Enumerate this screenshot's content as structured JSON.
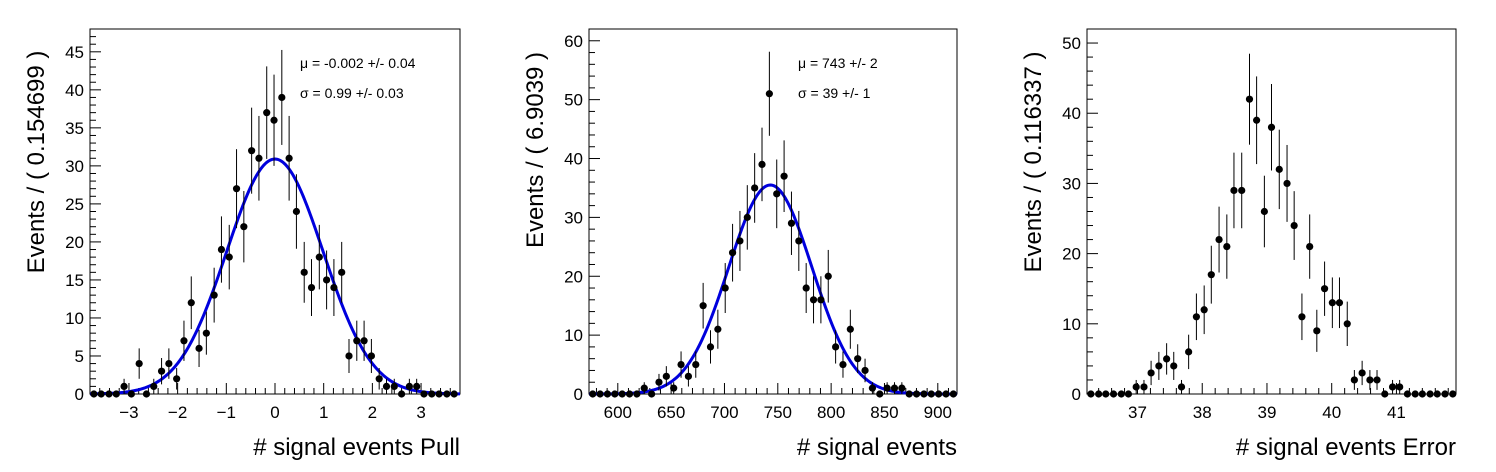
{
  "chart_data": [
    {
      "type": "scatter",
      "xlabel": "# signal events Pull",
      "ylabel": "Events / ( 0.154699 )",
      "xlim": [
        -3.8,
        3.8
      ],
      "ylim": [
        0,
        48
      ],
      "xticks": [
        -3,
        -2,
        -1,
        0,
        1,
        2,
        3
      ],
      "xtick_labels": [
        "−3",
        "−2",
        "−1",
        "0",
        "1",
        "2",
        "3"
      ],
      "yticks": [
        0,
        5,
        10,
        15,
        20,
        25,
        30,
        35,
        40,
        45
      ],
      "annotations": [
        "μ = -0.002 +/- 0.04",
        "σ =  0.99 +/- 0.03"
      ],
      "fit": {
        "type": "gaussian",
        "mean": -0.002,
        "sigma": 0.99,
        "amplitude": 30.9,
        "color": "#0000dd"
      },
      "points": {
        "x": [
          -3.72,
          -3.57,
          -3.41,
          -3.26,
          -3.1,
          -2.95,
          -2.79,
          -2.64,
          -2.49,
          -2.33,
          -2.18,
          -2.02,
          -1.87,
          -1.72,
          -1.56,
          -1.41,
          -1.25,
          -1.1,
          -0.94,
          -0.79,
          -0.64,
          -0.48,
          -0.33,
          -0.17,
          -0.02,
          0.14,
          0.29,
          0.44,
          0.6,
          0.75,
          0.91,
          1.06,
          1.21,
          1.37,
          1.52,
          1.68,
          1.83,
          1.98,
          2.14,
          2.29,
          2.45,
          2.6,
          2.76,
          2.91,
          3.06,
          3.22,
          3.37,
          3.53,
          3.68
        ],
        "y": [
          0,
          0,
          0,
          0,
          1,
          0,
          4,
          0,
          1,
          3,
          4,
          2,
          7,
          12,
          6,
          8,
          13,
          19,
          18,
          27,
          22,
          32,
          31,
          37,
          36,
          39,
          31,
          24,
          16,
          14,
          18,
          15,
          14,
          16,
          5,
          7,
          7,
          5,
          2,
          1,
          1,
          0,
          1,
          1,
          0,
          0,
          0,
          0,
          0
        ]
      }
    },
    {
      "type": "scatter",
      "xlabel": "# signal events",
      "ylabel": "Events / ( 6.9039 )",
      "xlim": [
        573,
        918
      ],
      "ylim": [
        0,
        62
      ],
      "xticks": [
        600,
        650,
        700,
        750,
        800,
        850,
        900
      ],
      "xtick_labels": [
        "600",
        "650",
        "700",
        "750",
        "800",
        "850",
        "900"
      ],
      "yticks": [
        0,
        10,
        20,
        30,
        40,
        50,
        60
      ],
      "annotations": [
        "μ =  743 +/- 2",
        "σ =  39 +/- 1"
      ],
      "fit": {
        "type": "gaussian",
        "mean": 743,
        "sigma": 39,
        "amplitude": 35.5,
        "color": "#0000dd"
      },
      "points": {
        "x": [
          576.5,
          583.4,
          590.3,
          597.2,
          604.1,
          611,
          617.9,
          624.8,
          631.7,
          638.6,
          645.5,
          652.4,
          659.3,
          666.2,
          673.1,
          680,
          686.9,
          693.8,
          700.7,
          707.6,
          714.5,
          721.4,
          728.3,
          735.2,
          742.1,
          749,
          755.9,
          762.8,
          769.7,
          776.6,
          783.5,
          790.4,
          797.3,
          804.2,
          811.1,
          818,
          824.9,
          831.8,
          838.7,
          845.6,
          852.5,
          859.4,
          866.3,
          873.2,
          880.1,
          887,
          893.9,
          900.8,
          907.7,
          914.6
        ],
        "y": [
          0,
          0,
          0,
          0,
          0,
          0,
          0,
          1,
          0,
          2,
          3,
          1,
          5,
          3,
          5,
          15,
          8,
          11,
          18,
          24,
          26,
          30,
          35,
          39,
          51,
          34,
          37,
          29,
          26,
          18,
          16,
          16,
          20,
          8,
          5,
          11,
          6,
          4,
          1,
          0,
          1,
          1,
          1,
          0,
          0,
          0,
          0,
          0,
          0,
          0
        ]
      }
    },
    {
      "type": "scatter",
      "xlabel": "# signal events Error",
      "ylabel": "Events / ( 0.116337 )",
      "xlim": [
        36.22,
        41.92
      ],
      "ylim": [
        0,
        52
      ],
      "xticks": [
        37,
        38,
        39,
        40,
        41
      ],
      "xtick_labels": [
        "37",
        "38",
        "39",
        "40",
        "41"
      ],
      "yticks": [
        0,
        10,
        20,
        30,
        40,
        50
      ],
      "points": {
        "x": [
          36.28,
          36.4,
          36.51,
          36.63,
          36.75,
          36.86,
          36.98,
          37.1,
          37.21,
          37.33,
          37.45,
          37.56,
          37.68,
          37.79,
          37.91,
          38.03,
          38.14,
          38.26,
          38.38,
          38.49,
          38.61,
          38.73,
          38.84,
          38.96,
          39.07,
          39.19,
          39.31,
          39.42,
          39.54,
          39.66,
          39.77,
          39.89,
          40.01,
          40.12,
          40.24,
          40.35,
          40.47,
          40.59,
          40.7,
          40.82,
          40.94,
          41.05,
          41.17,
          41.29,
          41.4,
          41.52,
          41.63,
          41.75,
          41.87
        ],
        "y": [
          0,
          0,
          0,
          0,
          0,
          0,
          1,
          1,
          3,
          4,
          5,
          4,
          1,
          6,
          11,
          12,
          17,
          22,
          21,
          29,
          29,
          42,
          39,
          26,
          38,
          32,
          30,
          24,
          11,
          21,
          9,
          15,
          13,
          13,
          10,
          2,
          3,
          2,
          2,
          0,
          1,
          1,
          0,
          0,
          0,
          0,
          0,
          0,
          0
        ]
      }
    }
  ]
}
